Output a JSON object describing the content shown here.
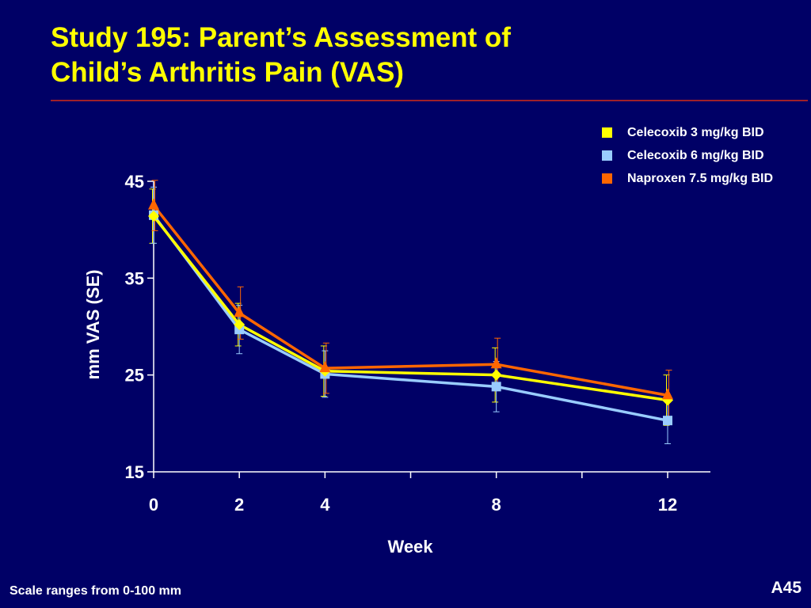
{
  "slide": {
    "title_lines": [
      "Study 195:  Parent’s Assessment of",
      "Child’s Arthritis Pain (VAS)"
    ],
    "footer_note": "Scale ranges from 0-100 mm",
    "slide_id": "A45"
  },
  "colors": {
    "background": "#000066",
    "title": "#ffff00",
    "rule": "#a0202a",
    "axis": "#ffffff"
  },
  "chart_data": {
    "type": "line",
    "xlabel": "Week",
    "ylabel": "mm VAS (SE)",
    "xlim": [
      0,
      13
    ],
    "ylim": [
      15,
      45
    ],
    "x_ticks": [
      0,
      2,
      4,
      6,
      8,
      10,
      12
    ],
    "x_tick_labels": [
      "0",
      "2",
      "4",
      "",
      "8",
      "",
      "12"
    ],
    "y_ticks": [
      15,
      25,
      35,
      45
    ],
    "grid": false,
    "legend_position": "top-right",
    "series": [
      {
        "name": "Celecoxib 3 mg/kg BID",
        "color": "#ffff00",
        "marker": "diamond",
        "x": [
          0,
          2,
          4,
          8,
          12
        ],
        "y": [
          41.4,
          30.2,
          25.4,
          25.0,
          22.4
        ],
        "se": [
          2.8,
          2.2,
          2.6,
          2.8,
          2.6
        ]
      },
      {
        "name": "Celecoxib 6 mg/kg BID",
        "color": "#99ccff",
        "marker": "square",
        "x": [
          0,
          2,
          4,
          8,
          12
        ],
        "y": [
          41.5,
          29.7,
          25.1,
          23.8,
          20.3
        ],
        "se": [
          2.9,
          2.5,
          2.4,
          2.6,
          2.4
        ]
      },
      {
        "name": "Naproxen 7.5 mg/kg BID",
        "color": "#ff6600",
        "marker": "triangle",
        "x": [
          0,
          2,
          4,
          8,
          12
        ],
        "y": [
          42.5,
          31.4,
          25.7,
          26.1,
          22.9
        ],
        "se": [
          2.6,
          2.7,
          2.6,
          2.7,
          2.6
        ]
      }
    ]
  }
}
